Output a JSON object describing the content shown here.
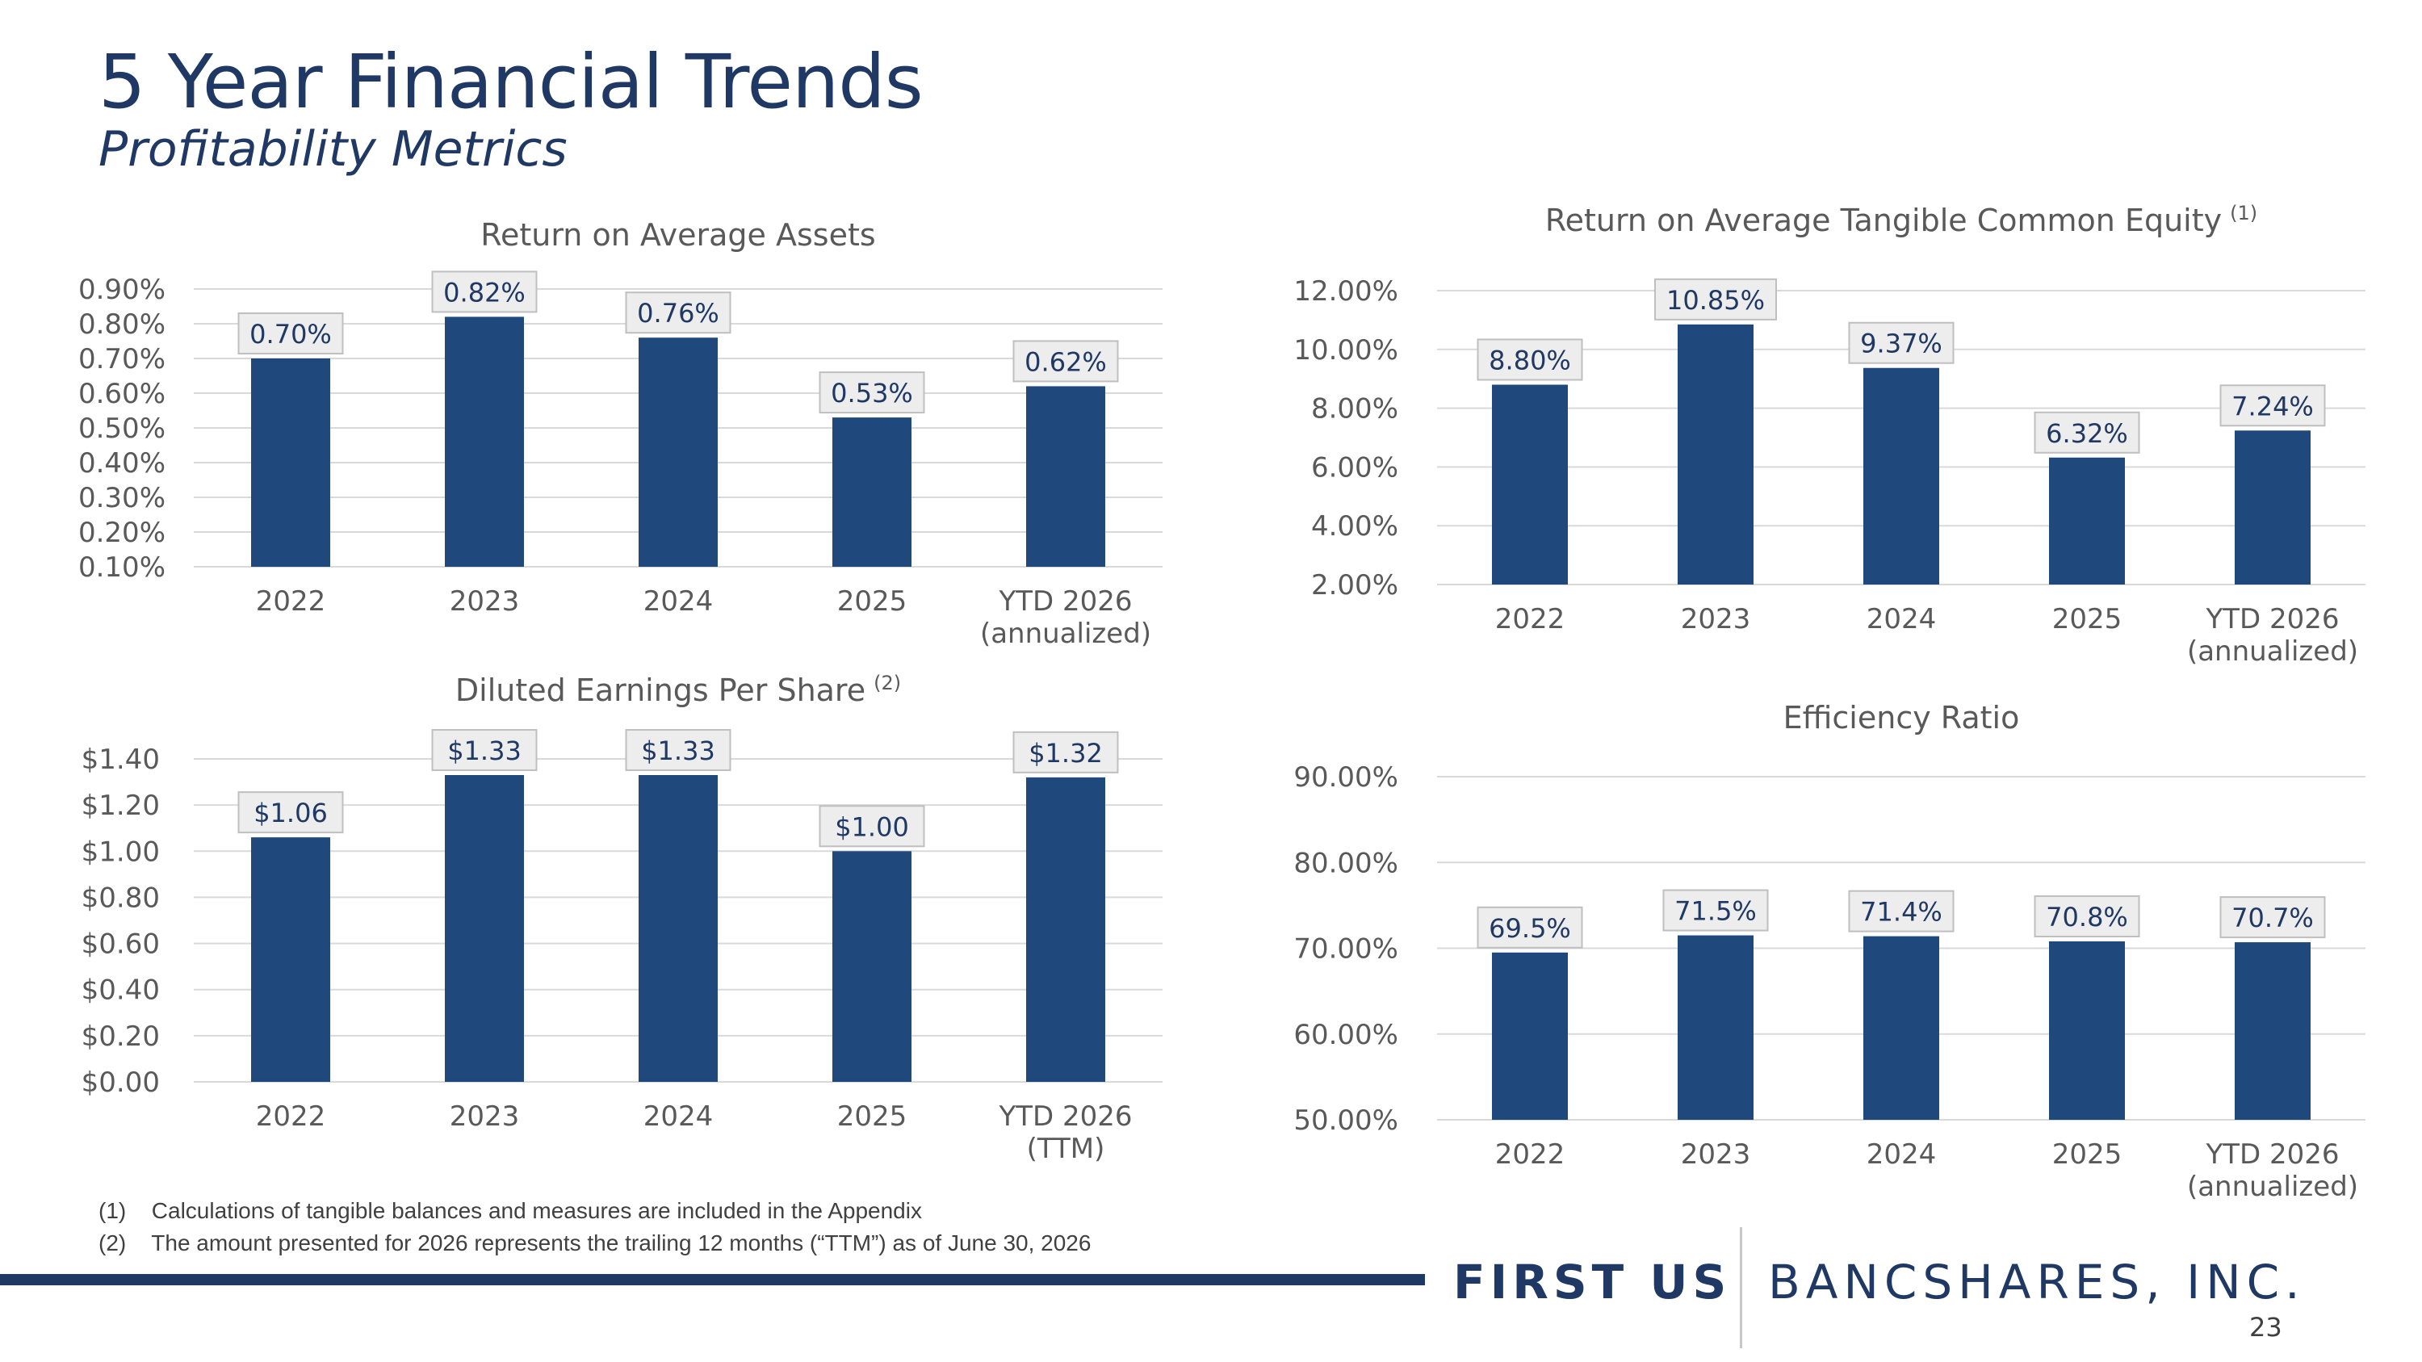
{
  "slide": {
    "title": "5 Year Financial Trends",
    "subtitle": "Profitability Metrics",
    "page_number": "23"
  },
  "footnotes": [
    {
      "num": "(1)",
      "text": "Calculations of tangible balances and measures are included in the Appendix"
    },
    {
      "num": "(2)",
      "text": "The amount presented for 2026 represents the trailing 12 months (“TTM”) as of June 30, 2026"
    }
  ],
  "logo": {
    "first": "FIRST US",
    "rest": "BANCSHARES, INC."
  },
  "colors": {
    "bar": "#1f497d",
    "title": "#1f3864",
    "grid": "#d9d9d9",
    "label_bg": "#ededed",
    "label_border": "#bfbfbf"
  },
  "chart_data": [
    {
      "id": "roaa",
      "type": "bar",
      "title": "Return on Average Assets",
      "title_note": "",
      "categories": [
        [
          "2022"
        ],
        [
          "2023"
        ],
        [
          "2024"
        ],
        [
          "2025"
        ],
        [
          "YTD 2026",
          "(annualized)"
        ]
      ],
      "values": [
        0.7,
        0.82,
        0.76,
        0.53,
        0.62
      ],
      "data_labels": [
        "0.70%",
        "0.82%",
        "0.76%",
        "0.53%",
        "0.62%"
      ],
      "ylim": [
        0.1,
        0.9
      ],
      "yticks": [
        0.9,
        0.8,
        0.7,
        0.6,
        0.5,
        0.4,
        0.3,
        0.2,
        0.1
      ],
      "ytick_labels": [
        "0.90%",
        "0.80%",
        "0.70%",
        "0.60%",
        "0.50%",
        "0.40%",
        "0.30%",
        "0.20%",
        "0.10%"
      ],
      "grid": true,
      "xlabel": "",
      "ylabel": ""
    },
    {
      "id": "rotce",
      "type": "bar",
      "title": "Return on Average Tangible Common Equity",
      "title_note": "(1)",
      "categories": [
        [
          "2022"
        ],
        [
          "2023"
        ],
        [
          "2024"
        ],
        [
          "2025"
        ],
        [
          "YTD 2026",
          "(annualized)"
        ]
      ],
      "values": [
        8.8,
        10.85,
        9.37,
        6.32,
        7.24
      ],
      "data_labels": [
        "8.80%",
        "10.85%",
        "9.37%",
        "6.32%",
        "7.24%"
      ],
      "ylim": [
        2.0,
        12.0
      ],
      "yticks": [
        12.0,
        10.0,
        8.0,
        6.0,
        4.0,
        2.0
      ],
      "ytick_labels": [
        "12.00%",
        "10.00%",
        "8.00%",
        "6.00%",
        "4.00%",
        "2.00%"
      ],
      "grid": true,
      "xlabel": "",
      "ylabel": ""
    },
    {
      "id": "eps",
      "type": "bar",
      "title": "Diluted Earnings Per Share",
      "title_note": "(2)",
      "categories": [
        [
          "2022"
        ],
        [
          "2023"
        ],
        [
          "2024"
        ],
        [
          "2025"
        ],
        [
          "YTD 2026",
          "(TTM)"
        ]
      ],
      "values": [
        1.06,
        1.33,
        1.33,
        1.0,
        1.32
      ],
      "data_labels": [
        "$1.06",
        "$1.33",
        "$1.33",
        "$1.00",
        "$1.32"
      ],
      "ylim": [
        0.0,
        1.4
      ],
      "yticks": [
        1.4,
        1.2,
        1.0,
        0.8,
        0.6,
        0.4,
        0.2,
        0.0
      ],
      "ytick_labels": [
        "$1.40",
        "$1.20",
        "$1.00",
        "$0.80",
        "$0.60",
        "$0.40",
        "$0.20",
        "$0.00"
      ],
      "grid": true,
      "xlabel": "",
      "ylabel": ""
    },
    {
      "id": "eff",
      "type": "bar",
      "title": "Efficiency Ratio",
      "title_note": "",
      "categories": [
        [
          "2022"
        ],
        [
          "2023"
        ],
        [
          "2024"
        ],
        [
          "2025"
        ],
        [
          "YTD 2026",
          "(annualized)"
        ]
      ],
      "values": [
        69.5,
        71.5,
        71.4,
        70.8,
        70.7
      ],
      "data_labels": [
        "69.5%",
        "71.5%",
        "71.4%",
        "70.8%",
        "70.7%"
      ],
      "ylim": [
        50.0,
        90.0
      ],
      "yticks": [
        90.0,
        80.0,
        70.0,
        60.0,
        50.0
      ],
      "ytick_labels": [
        "90.00%",
        "80.00%",
        "70.00%",
        "60.00%",
        "50.00%"
      ],
      "grid": true,
      "xlabel": "",
      "ylabel": ""
    }
  ]
}
